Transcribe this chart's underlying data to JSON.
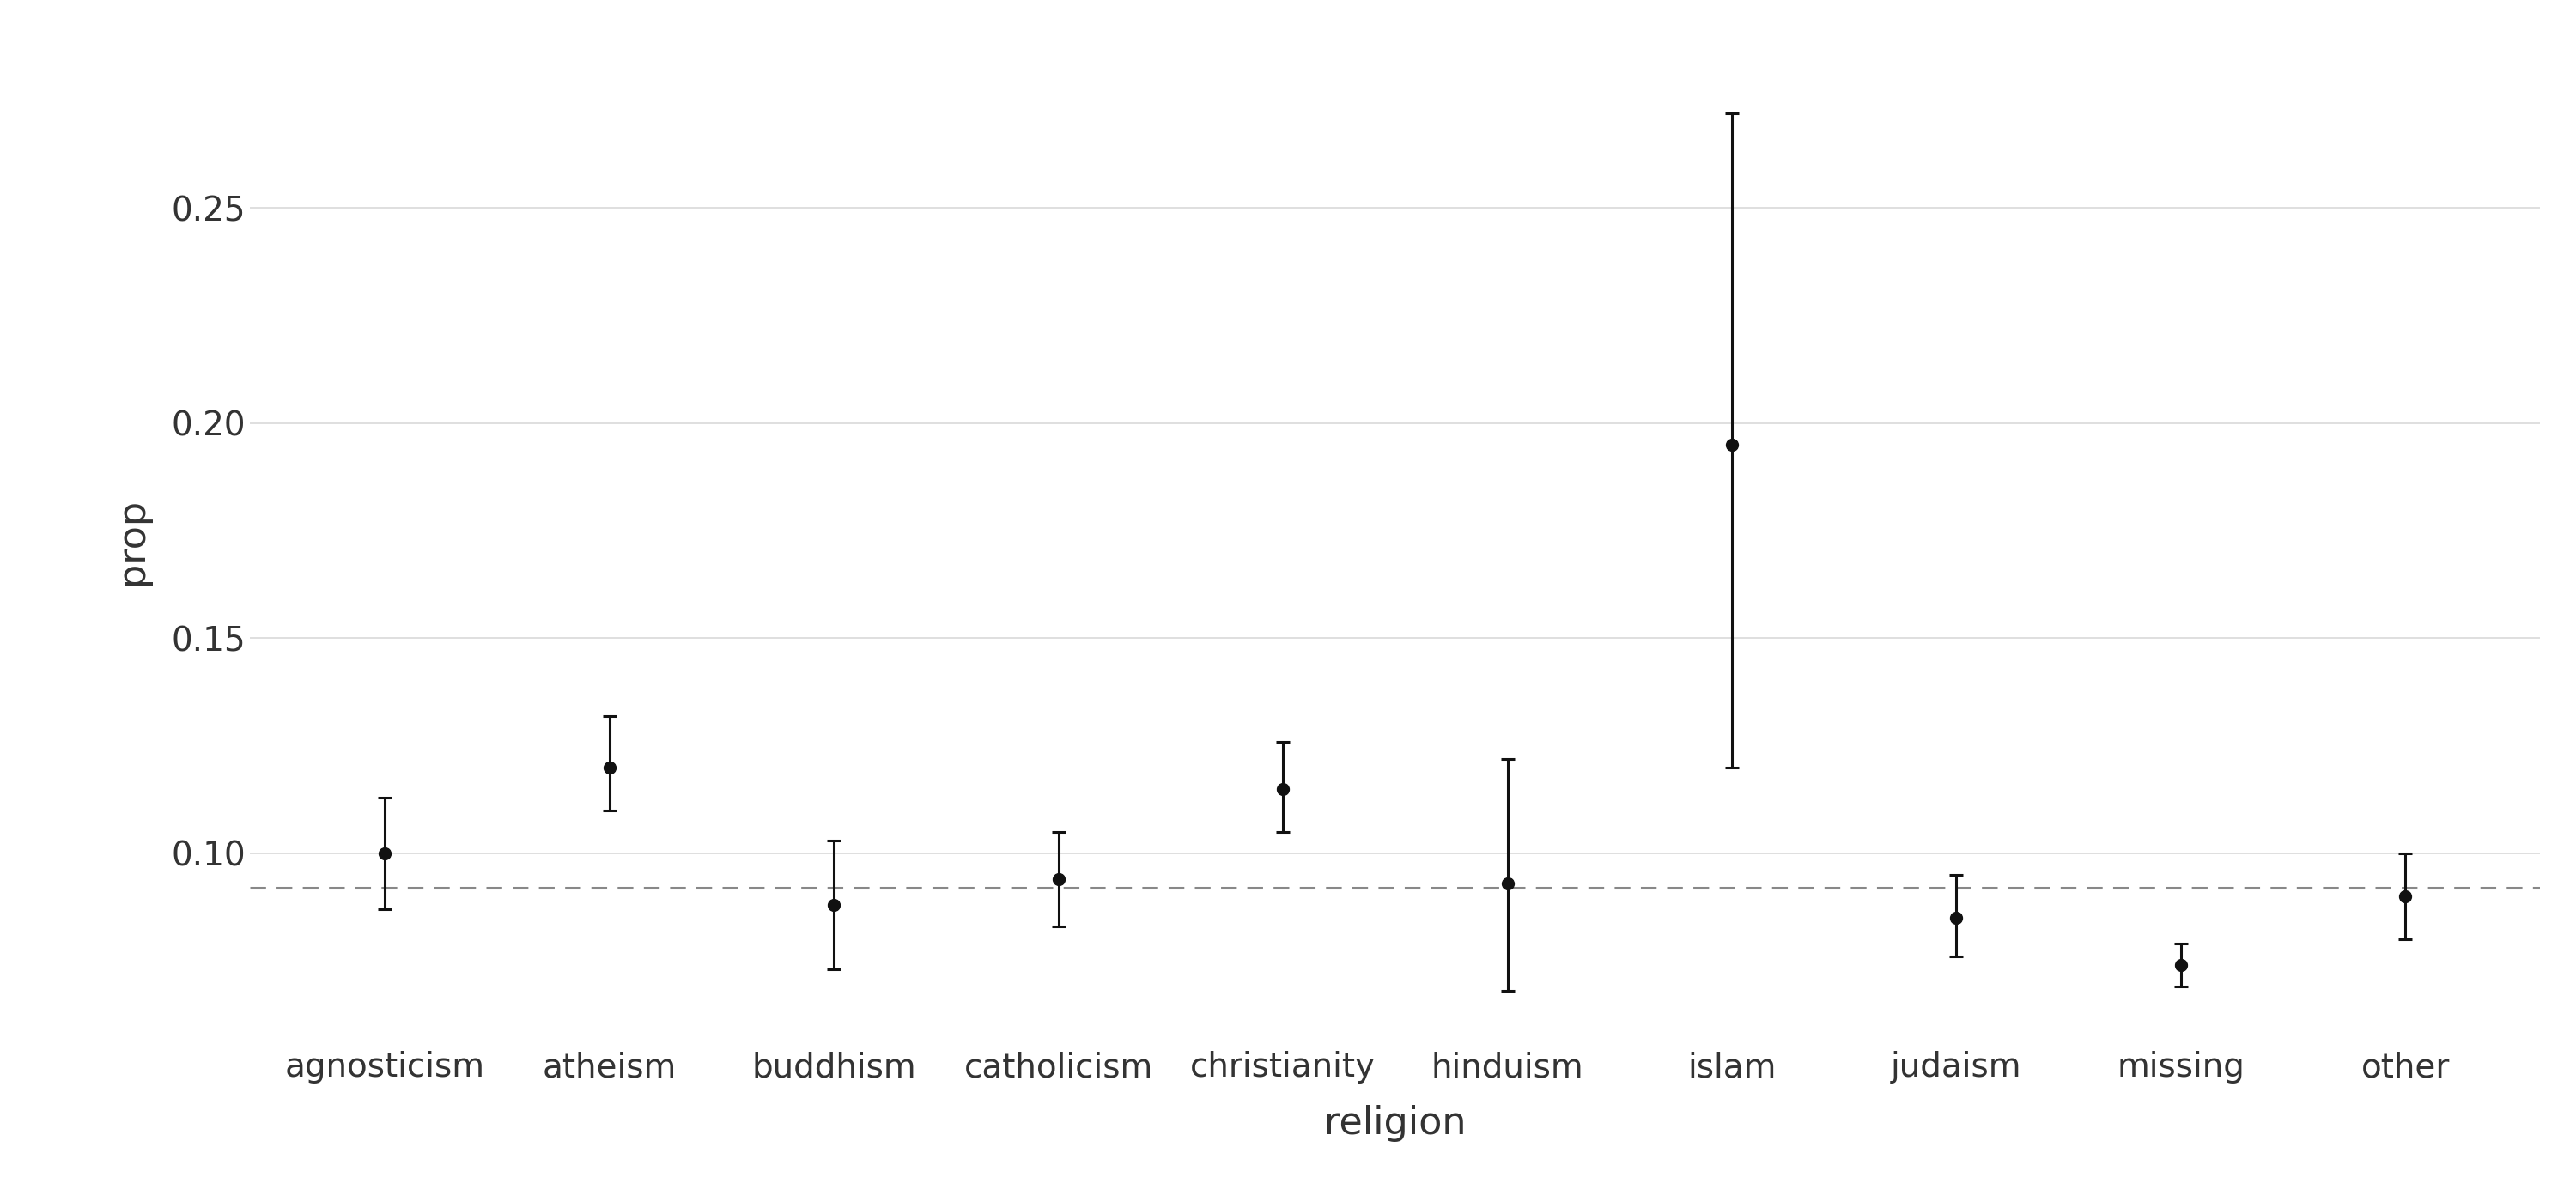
{
  "categories": [
    "agnosticism",
    "atheism",
    "buddhism",
    "catholicism",
    "christianity",
    "hinduism",
    "islam",
    "judaism",
    "missing",
    "other"
  ],
  "estimates": [
    0.1,
    0.12,
    0.088,
    0.094,
    0.115,
    0.093,
    0.195,
    0.085,
    0.074,
    0.09
  ],
  "ci_lower": [
    0.087,
    0.11,
    0.073,
    0.083,
    0.105,
    0.068,
    0.12,
    0.076,
    0.069,
    0.08
  ],
  "ci_upper": [
    0.113,
    0.132,
    0.103,
    0.105,
    0.126,
    0.122,
    0.272,
    0.095,
    0.079,
    0.1
  ],
  "hline_y": 0.092,
  "xlabel": "religion",
  "ylabel": "prop",
  "ylim_min": 0.055,
  "ylim_max": 0.29,
  "yticks": [
    0.1,
    0.15,
    0.2,
    0.25
  ],
  "background_color": "#ffffff",
  "plot_background_color": "#ffffff",
  "point_color": "#111111",
  "line_color": "#111111",
  "hline_color": "#888888",
  "grid_color": "#d9d9d9",
  "marker_size": 10,
  "capsize": 6,
  "axis_label_fontsize": 32,
  "tick_fontsize": 28
}
